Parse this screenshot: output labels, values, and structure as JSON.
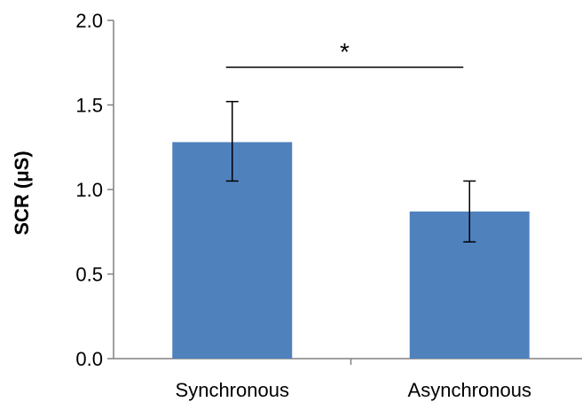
{
  "chart_data": {
    "type": "bar",
    "categories": [
      "Synchronous",
      "Asynchronous"
    ],
    "values": [
      1.28,
      0.87
    ],
    "error_upper": [
      1.52,
      1.05
    ],
    "error_lower": [
      1.05,
      0.69
    ],
    "ylabel": "SCR (μS)",
    "xlabel": "",
    "ylim": [
      0,
      2.0
    ],
    "yticks": [
      "0.0",
      "0.5",
      "1.0",
      "1.5",
      "2.0"
    ],
    "significance": {
      "label": "*",
      "between": [
        0,
        1
      ]
    },
    "bar_color": "#4f81bd",
    "grid": false,
    "legend": "none"
  }
}
